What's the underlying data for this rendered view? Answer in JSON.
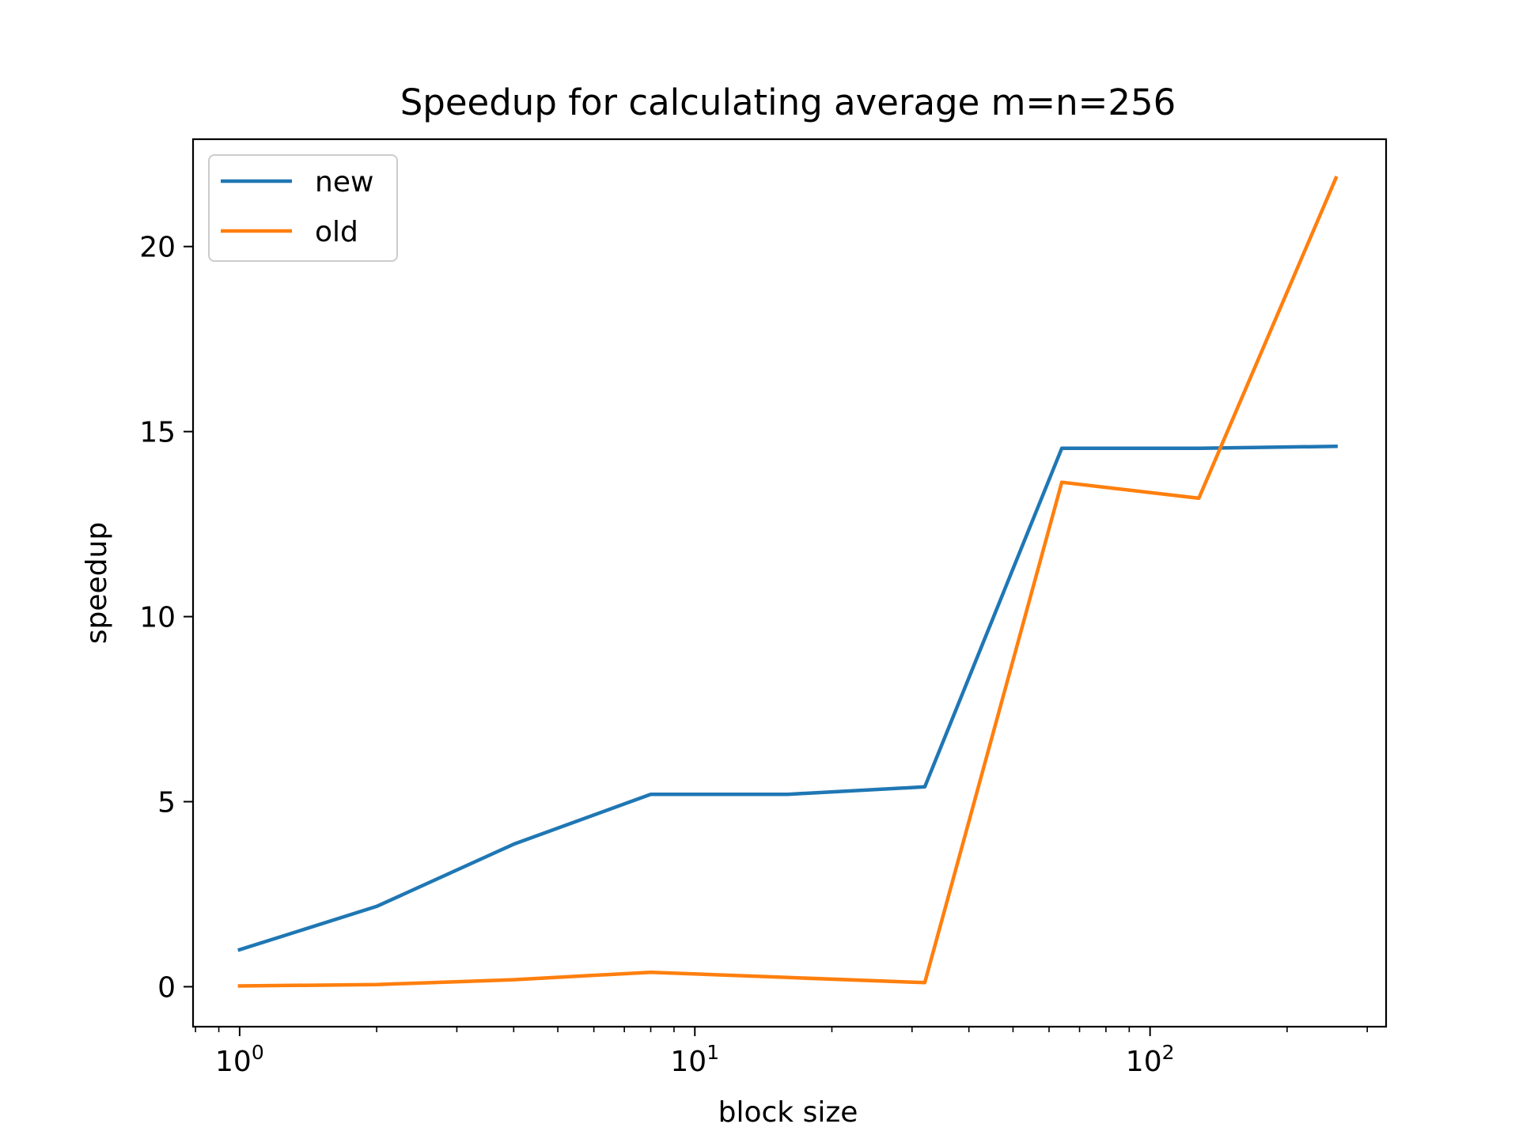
{
  "chart_data": {
    "type": "line",
    "title": "Speedup for calculating average m=n=256",
    "xlabel": "block size",
    "ylabel": "speedup",
    "xscale": "log",
    "xlim": [
      0.79,
      330
    ],
    "ylim": [
      -1.08,
      22.9
    ],
    "grid": false,
    "legend_position": "top-left",
    "x": [
      1,
      2,
      4,
      8,
      16,
      32,
      64,
      128,
      256
    ],
    "x_ticks": [
      {
        "value": 1,
        "base": "10",
        "exp": "0"
      },
      {
        "value": 10,
        "base": "10",
        "exp": "1"
      },
      {
        "value": 100,
        "base": "10",
        "exp": "2"
      }
    ],
    "y_ticks": [
      0,
      5,
      10,
      15,
      20
    ],
    "series": [
      {
        "name": "new",
        "color": "#1f77b4",
        "values": [
          1.0,
          2.17,
          3.85,
          5.2,
          5.2,
          5.4,
          14.55,
          14.55,
          14.6
        ]
      },
      {
        "name": "old",
        "color": "#ff7f0e",
        "values": [
          0.02,
          0.06,
          0.19,
          0.39,
          0.25,
          0.11,
          13.63,
          13.2,
          21.85
        ]
      }
    ]
  }
}
